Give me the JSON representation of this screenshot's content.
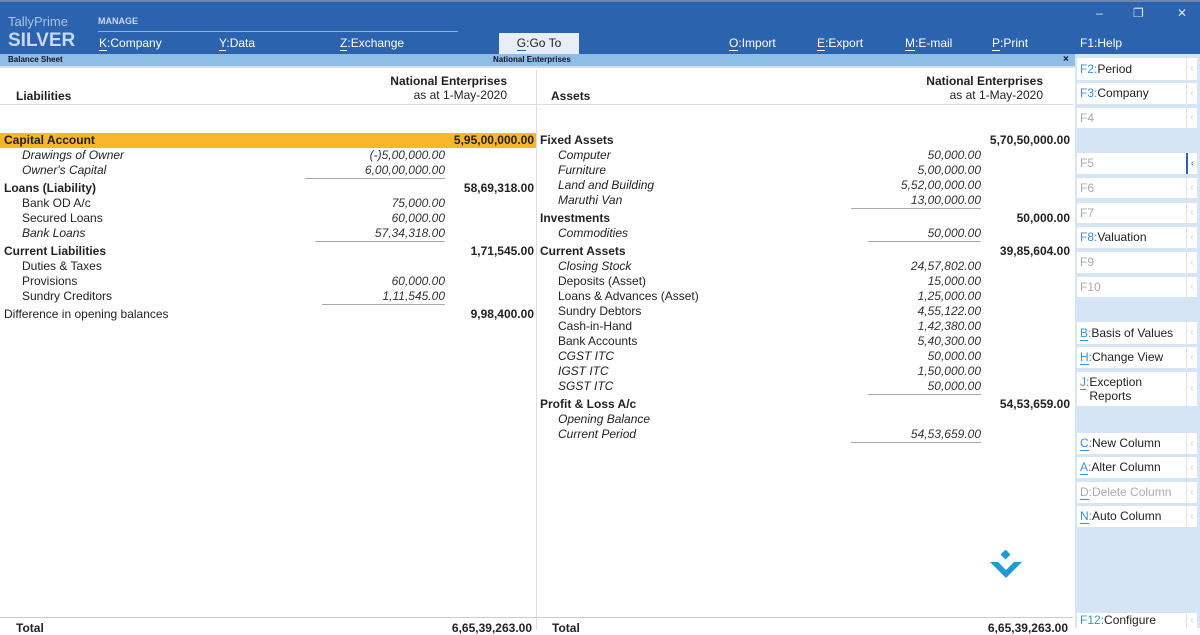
{
  "app": {
    "brand_top": "TallyPrime",
    "brand_edition": "SILVER",
    "manage_label": "MANAGE"
  },
  "menu": [
    {
      "key": "K",
      "label": "Company"
    },
    {
      "key": "Y",
      "label": "Data"
    },
    {
      "key": "Z",
      "label": "Exchange"
    },
    {
      "key": "G",
      "label": "Go To"
    },
    {
      "key": "O",
      "label": "Import"
    },
    {
      "key": "E",
      "label": "Export"
    },
    {
      "key": "M",
      "label": "E-mail"
    },
    {
      "key": "P",
      "label": "Print"
    },
    {
      "key": "F1",
      "label": "Help"
    }
  ],
  "window_controls": {
    "minimize": "–",
    "restore": "❐",
    "close": "✕"
  },
  "titlebar": {
    "report": "Balance Sheet",
    "company": "National Enterprises",
    "close": "×"
  },
  "header": {
    "liabilities": "Liabilities",
    "assets": "Assets",
    "company": "National Enterprises",
    "date": "as at 1-May-2020"
  },
  "liabilities": [
    {
      "name": "Capital Account",
      "type": "group",
      "total": "5,95,00,000.00",
      "highlight": true
    },
    {
      "name": "Drawings of Owner",
      "type": "ledger",
      "italic": true,
      "value": "(-)5,00,000.00"
    },
    {
      "name": "Owner's Capital",
      "type": "ledger",
      "italic": true,
      "value": "6,00,00,000.00",
      "last": true
    },
    {
      "name": "Loans (Liability)",
      "type": "group",
      "total": "58,69,318.00"
    },
    {
      "name": "Bank OD A/c",
      "type": "ledger",
      "value": "75,000.00"
    },
    {
      "name": "Secured Loans",
      "type": "ledger",
      "value": "60,000.00"
    },
    {
      "name": "Bank Loans",
      "type": "ledger",
      "italic": true,
      "value": "57,34,318.00",
      "last": true
    },
    {
      "name": "Current Liabilities",
      "type": "group",
      "total": "1,71,545.00"
    },
    {
      "name": "Duties & Taxes",
      "type": "ledger",
      "value": ""
    },
    {
      "name": "Provisions",
      "type": "ledger",
      "value": "60,000.00"
    },
    {
      "name": "Sundry Creditors",
      "type": "ledger",
      "value": "1,11,545.00",
      "last": true
    },
    {
      "name": "Difference in opening balances",
      "type": "plain",
      "total": "9,98,400.00"
    }
  ],
  "assets": [
    {
      "name": "Fixed Assets",
      "type": "group",
      "total": "5,70,50,000.00"
    },
    {
      "name": "Computer",
      "type": "ledger",
      "italic": true,
      "value": "50,000.00"
    },
    {
      "name": "Furniture",
      "type": "ledger",
      "italic": true,
      "value": "5,00,000.00"
    },
    {
      "name": "Land and Building",
      "type": "ledger",
      "italic": true,
      "value": "5,52,00,000.00"
    },
    {
      "name": "Maruthi Van",
      "type": "ledger",
      "italic": true,
      "value": "13,00,000.00",
      "last": true
    },
    {
      "name": "Investments",
      "type": "group",
      "total": "50,000.00"
    },
    {
      "name": "Commodities",
      "type": "ledger",
      "italic": true,
      "value": "50,000.00",
      "last": true
    },
    {
      "name": "Current Assets",
      "type": "group",
      "total": "39,85,604.00"
    },
    {
      "name": "Closing Stock",
      "type": "ledger",
      "italic": true,
      "value": "24,57,802.00"
    },
    {
      "name": "Deposits (Asset)",
      "type": "ledger",
      "value": "15,000.00"
    },
    {
      "name": "Loans & Advances (Asset)",
      "type": "ledger",
      "value": "1,25,000.00"
    },
    {
      "name": "Sundry Debtors",
      "type": "ledger",
      "value": "4,55,122.00"
    },
    {
      "name": "Cash-in-Hand",
      "type": "ledger",
      "value": "1,42,380.00"
    },
    {
      "name": "Bank Accounts",
      "type": "ledger",
      "value": "5,40,300.00"
    },
    {
      "name": "CGST ITC",
      "type": "ledger",
      "italic": true,
      "value": "50,000.00"
    },
    {
      "name": "IGST ITC",
      "type": "ledger",
      "italic": true,
      "value": "1,50,000.00"
    },
    {
      "name": "SGST ITC",
      "type": "ledger",
      "italic": true,
      "value": "50,000.00",
      "last": true
    },
    {
      "name": "Profit & Loss A/c",
      "type": "group",
      "total": "54,53,659.00"
    },
    {
      "name": "Opening Balance",
      "type": "ledger",
      "italic": true,
      "value": ""
    },
    {
      "name": "Current Period",
      "type": "ledger",
      "italic": true,
      "value": "54,53,659.00",
      "last": true
    }
  ],
  "totals": {
    "label": "Total",
    "liabilities": "6,65,39,263.00",
    "assets": "6,65,39,263.00"
  },
  "sidebar": [
    {
      "key": "F2",
      "label": "Period",
      "enabled": true
    },
    {
      "key": "F3",
      "label": "Company",
      "enabled": true
    },
    {
      "key": "F4",
      "label": "",
      "enabled": false
    },
    {
      "key": "F5",
      "label": "",
      "enabled": false,
      "active": true
    },
    {
      "key": "F6",
      "label": "",
      "enabled": false
    },
    {
      "key": "F7",
      "label": "",
      "enabled": false
    },
    {
      "key": "F8",
      "label": "Valuation",
      "enabled": true
    },
    {
      "key": "F9",
      "label": "",
      "enabled": false
    },
    {
      "key": "F10",
      "label": "",
      "enabled": false
    },
    {
      "key": "B",
      "label": "Basis of Values",
      "enabled": true
    },
    {
      "key": "H",
      "label": "Change View",
      "enabled": true
    },
    {
      "key": "J",
      "label": "Exception Reports",
      "enabled": true
    },
    {
      "key": "C",
      "label": "New Column",
      "enabled": true
    },
    {
      "key": "A",
      "label": "Alter Column",
      "enabled": true
    },
    {
      "key": "D",
      "label": "Delete Column",
      "enabled": false
    },
    {
      "key": "N",
      "label": "Auto Column",
      "enabled": true
    },
    {
      "key": "F12",
      "label": "Configure",
      "enabled": true
    }
  ],
  "watermark": {
    "text": "oDown"
  },
  "colors": {
    "header_bg": "#2c63ae",
    "titlebar_bg": "#8ebde6",
    "highlight": "#f9b62a",
    "sidebar_bg": "#d5e5f5",
    "key_color": "#3d8fd8"
  }
}
